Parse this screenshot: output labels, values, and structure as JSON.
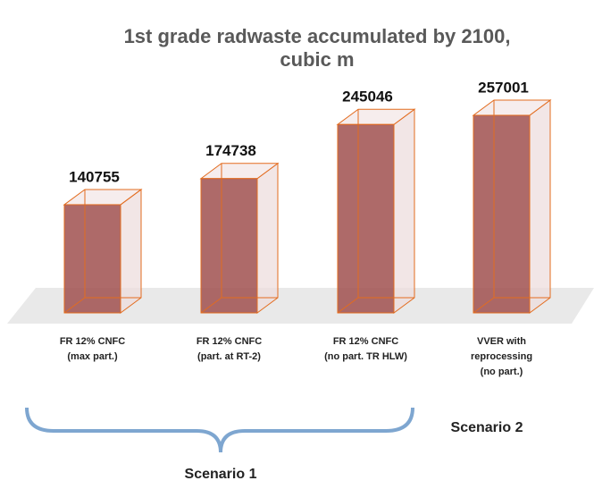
{
  "chart_data": {
    "type": "bar3d",
    "title": [
      "1st grade radwaste accumulated by 2100,",
      "cubic m"
    ],
    "categories": [
      [
        "FR 12% CNFC",
        "(max part.)"
      ],
      [
        "FR 12% CNFC",
        "(part. at RT-2)"
      ],
      [
        "FR 12% CNFC",
        "(no part. TR HLW)"
      ],
      [
        "VVER with",
        "reprocessing",
        "(no part.)"
      ]
    ],
    "values": [
      140755,
      174738,
      245046,
      257001
    ],
    "color": "#a0504f",
    "edge_color": "#e36c1f",
    "ylim": [
      0,
      300000
    ],
    "annotations": [
      "Scenario 1",
      "Scenario 2"
    ]
  }
}
